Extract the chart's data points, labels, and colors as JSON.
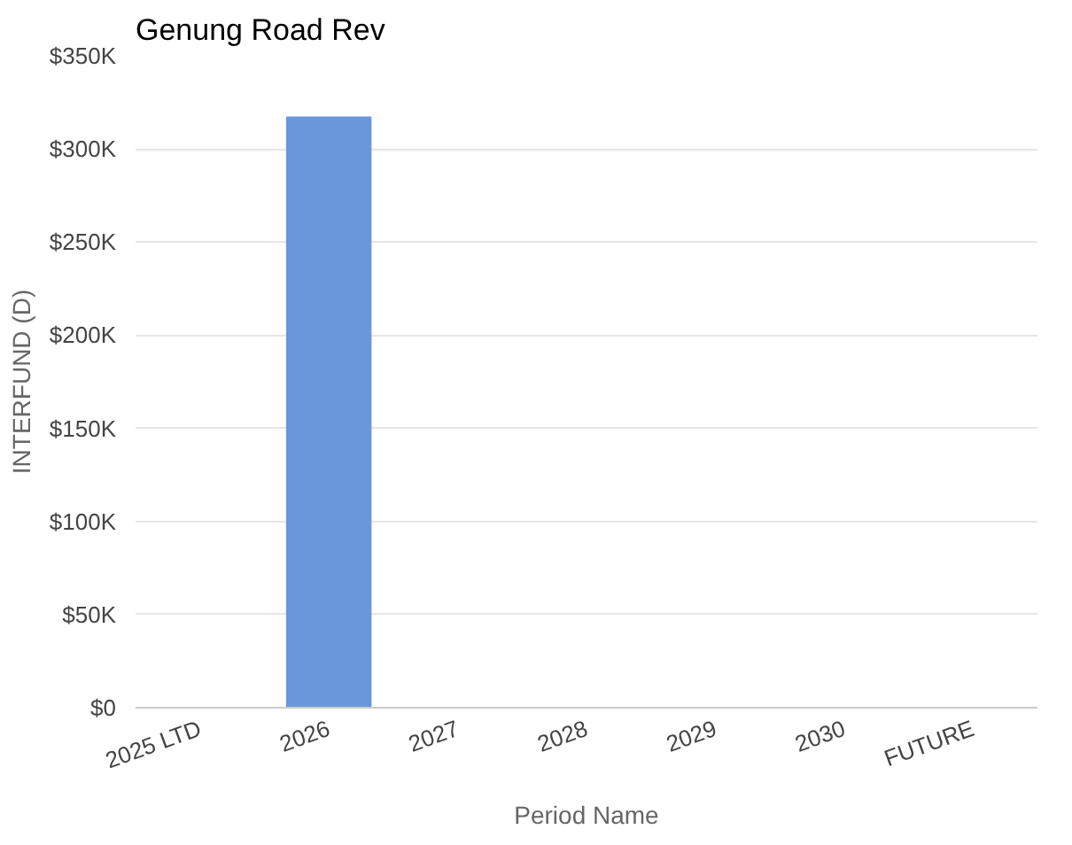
{
  "chart_data": {
    "type": "bar",
    "title": "Genung Road Rev",
    "xlabel": "Period Name",
    "ylabel": "INTERFUND (D)",
    "categories": [
      "2025 LTD",
      "2026",
      "2027",
      "2028",
      "2029",
      "2030",
      "FUTURE"
    ],
    "values": [
      0,
      317000,
      0,
      0,
      0,
      0,
      0
    ],
    "color": "#6a96dc",
    "ylim": [
      0,
      350000
    ],
    "yticks": [
      {
        "value": 0,
        "label": "$0"
      },
      {
        "value": 50000,
        "label": "$50K"
      },
      {
        "value": 100000,
        "label": "$100K"
      },
      {
        "value": 150000,
        "label": "$150K"
      },
      {
        "value": 200000,
        "label": "$200K"
      },
      {
        "value": 250000,
        "label": "$250K"
      },
      {
        "value": 300000,
        "label": "$300K"
      },
      {
        "value": 350000,
        "label": "$350K"
      }
    ],
    "grid": "y"
  }
}
